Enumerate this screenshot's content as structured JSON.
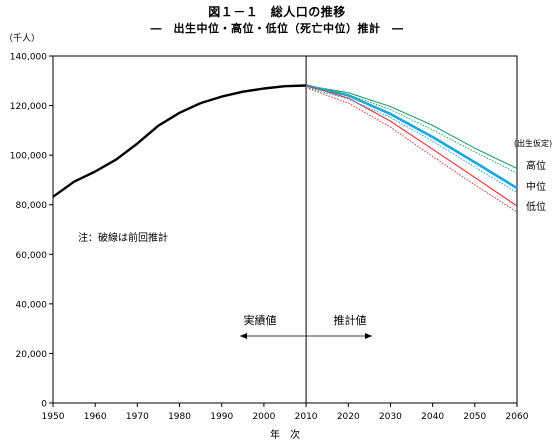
{
  "chart_data": {
    "type": "line",
    "title": "図１－１　総人口の推移",
    "subtitle": "―　出生中位・高位・低位（死亡中位）推計　―",
    "ylabel": "（千人）",
    "xlabel": "年　次",
    "ylim": [
      0,
      140000
    ],
    "xlim": [
      1950,
      2060
    ],
    "y_ticks": [
      "0",
      "20,000",
      "40,000",
      "60,000",
      "80,000",
      "100,000",
      "120,000",
      "140,000"
    ],
    "x_ticks": [
      "1950",
      "1960",
      "1970",
      "1980",
      "1990",
      "2000",
      "2010",
      "2020",
      "2030",
      "2040",
      "2050",
      "2060"
    ],
    "grid": false,
    "legend_title": "(出生仮定)",
    "annotation_note": "注：破線は前回推計",
    "annotation_actual": "実績値",
    "annotation_projection": "推計値",
    "divider_year": 2010,
    "series": [
      {
        "name": "実績値",
        "color": "#000000",
        "style": "solid",
        "x": [
          1950,
          1955,
          1960,
          1965,
          1970,
          1972,
          1975,
          1980,
          1985,
          1990,
          1995,
          2000,
          2005,
          2010
        ],
        "values": [
          83200,
          89300,
          93400,
          98300,
          104700,
          107600,
          111900,
          117100,
          121000,
          123600,
          125600,
          126900,
          127800,
          128100
        ]
      },
      {
        "name": "高位",
        "color": "#22a06b",
        "style": "solid",
        "x": [
          2010,
          2020,
          2030,
          2040,
          2050,
          2060
        ],
        "values": [
          128100,
          125200,
          119600,
          112000,
          102800,
          94600
        ]
      },
      {
        "name": "中位",
        "color": "#19a7e0",
        "style": "solid",
        "x": [
          2010,
          2020,
          2030,
          2040,
          2050,
          2060
        ],
        "values": [
          128100,
          124100,
          116600,
          107300,
          97100,
          86700
        ]
      },
      {
        "name": "低位",
        "color": "#e03030",
        "style": "solid",
        "x": [
          2010,
          2020,
          2030,
          2040,
          2050,
          2060
        ],
        "values": [
          128100,
          123000,
          113700,
          102400,
          91000,
          79500
        ]
      },
      {
        "name": "前回推計（高位）",
        "color": "#22a06b",
        "style": "dotted",
        "x": [
          2010,
          2020,
          2030,
          2040,
          2050,
          2060
        ],
        "values": [
          127200,
          124400,
          118400,
          110200,
          101300,
          92700
        ]
      },
      {
        "name": "前回推計（中位）",
        "color": "#19a7e0",
        "style": "dotted",
        "x": [
          2010,
          2020,
          2030,
          2040,
          2050,
          2060
        ],
        "values": [
          127200,
          122700,
          115200,
          105700,
          95200,
          84900
        ]
      },
      {
        "name": "前回推計（低位）",
        "color": "#e03030",
        "style": "dotted",
        "x": [
          2010,
          2020,
          2030,
          2040,
          2050,
          2060
        ],
        "values": [
          127200,
          121000,
          111300,
          99500,
          88000,
          77000
        ]
      }
    ],
    "legend_labels": [
      "高位",
      "中位",
      "低位"
    ]
  }
}
